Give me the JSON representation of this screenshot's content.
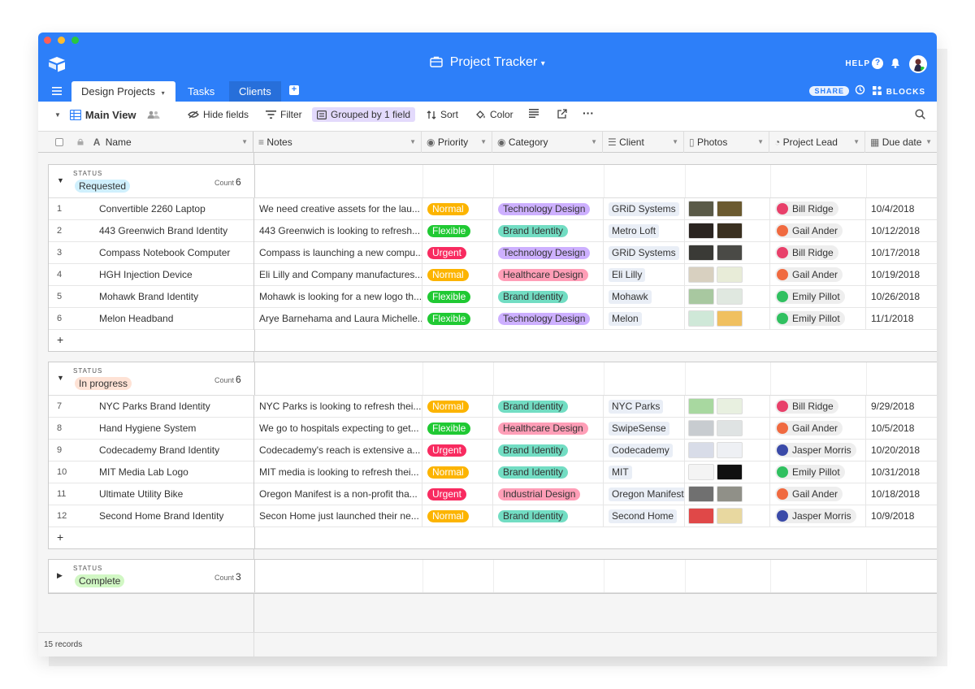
{
  "window": {
    "traffic_colors": [
      "#fe5f57",
      "#febc2e",
      "#28c840"
    ]
  },
  "header": {
    "title": "Project Tracker",
    "title_caret": "▾",
    "help": "HELP",
    "share": "SHARE",
    "blocks": "BLOCKS",
    "icons": [
      "base-logo-icon",
      "briefcase-icon",
      "help-icon",
      "bell-icon",
      "avatar"
    ]
  },
  "tabs": [
    {
      "label": "Design Projects",
      "caret": "▾"
    },
    {
      "label": "Tasks"
    },
    {
      "label": "Clients"
    }
  ],
  "toolbar": {
    "view_name": "Main View",
    "hide_fields": "Hide fields",
    "filter": "Filter",
    "grouped": "Grouped by 1 field",
    "sort": "Sort",
    "color": "Color"
  },
  "columns": [
    "Name",
    "Notes",
    "Priority",
    "Category",
    "Client",
    "Photos",
    "Project Lead",
    "Due date"
  ],
  "priority_colors": {
    "Normal": "#fcb400",
    "Flexible": "#20c933",
    "Urgent": "#f82b60"
  },
  "category_colors": {
    "Technology Design": "#cdb0ff",
    "Brand Identity": "#72ddc3",
    "Healthcare Design": "#ff9eb7",
    "Industrial Design": "#ff9eb7"
  },
  "groups": [
    {
      "status_label": "STATUS",
      "status": "Requested",
      "pill_bg": "#d0f0fd",
      "count_label": "Count",
      "count": "6",
      "expanded": true,
      "rows": [
        {
          "n": "1",
          "name": "Convertible 2260 Laptop",
          "notes": "We need creative assets for the lau...",
          "priority": "Normal",
          "category": "Technology Design",
          "client": "GRiD Systems",
          "lead": "Bill Ridge",
          "due": "10/4/2018",
          "photos": [
            "#5a5a48",
            "#6b5a30"
          ]
        },
        {
          "n": "2",
          "name": "443 Greenwich Brand Identity",
          "notes": "443 Greenwich is looking to refresh...",
          "priority": "Flexible",
          "category": "Brand Identity",
          "client": "Metro Loft",
          "lead": "Gail Ander",
          "due": "10/12/2018",
          "photos": [
            "#2a2420",
            "#3a3020"
          ]
        },
        {
          "n": "3",
          "name": "Compass Notebook Computer",
          "notes": "Compass is launching a new compu...",
          "priority": "Urgent",
          "category": "Technology Design",
          "client": "GRiD Systems",
          "lead": "Bill Ridge",
          "due": "10/17/2018",
          "photos": [
            "#3a3a36",
            "#4a4a46"
          ]
        },
        {
          "n": "4",
          "name": "HGH Injection Device",
          "notes": "Eli Lilly and Company manufactures...",
          "priority": "Normal",
          "category": "Healthcare Design",
          "client": "Eli Lilly",
          "lead": "Gail Ander",
          "due": "10/19/2018",
          "photos": [
            "#d8d0c0",
            "#e8ecd8"
          ]
        },
        {
          "n": "5",
          "name": "Mohawk Brand Identity",
          "notes": "Mohawk is looking for a new logo th...",
          "priority": "Flexible",
          "category": "Brand Identity",
          "client": "Mohawk",
          "lead": "Emily Pillot",
          "due": "10/26/2018",
          "photos": [
            "#a8c8a0",
            "#e0e8e0"
          ]
        },
        {
          "n": "6",
          "name": "Melon Headband",
          "notes": "Arye Barnehama and Laura Michelle...",
          "priority": "Flexible",
          "category": "Technology Design",
          "client": "Melon",
          "lead": "Emily Pillot",
          "due": "11/1/2018",
          "photos": [
            "#cfe8d8",
            "#f0c060"
          ]
        }
      ]
    },
    {
      "status_label": "STATUS",
      "status": "In progress",
      "pill_bg": "#fee2d5",
      "count_label": "Count",
      "count": "6",
      "expanded": true,
      "rows": [
        {
          "n": "7",
          "name": "NYC Parks Brand Identity",
          "notes": "NYC Parks is looking to refresh thei...",
          "priority": "Normal",
          "category": "Brand Identity",
          "client": "NYC Parks",
          "lead": "Bill Ridge",
          "due": "9/29/2018",
          "photos": [
            "#a8d8a0",
            "#e8f0e0"
          ]
        },
        {
          "n": "8",
          "name": "Hand Hygiene System",
          "notes": "We go to hospitals expecting to get...",
          "priority": "Flexible",
          "category": "Healthcare Design",
          "client": "SwipeSense",
          "lead": "Gail Ander",
          "due": "10/5/2018",
          "photos": [
            "#c8ccd0",
            "#dfe3e3"
          ]
        },
        {
          "n": "9",
          "name": "Codecademy Brand Identity",
          "notes": "Codecademy's reach is extensive a...",
          "priority": "Urgent",
          "category": "Brand Identity",
          "client": "Codecademy",
          "lead": "Jasper Morris",
          "due": "10/20/2018",
          "photos": [
            "#d8dce8",
            "#eef0f4"
          ]
        },
        {
          "n": "10",
          "name": "MIT Media Lab Logo",
          "notes": "MIT media is looking to refresh thei...",
          "priority": "Normal",
          "category": "Brand Identity",
          "client": "MIT",
          "lead": "Emily Pillot",
          "due": "10/31/2018",
          "photos": [
            "#f4f4f4",
            "#111111"
          ]
        },
        {
          "n": "11",
          "name": "Ultimate Utility Bike",
          "notes": "Oregon Manifest is a non-profit tha...",
          "priority": "Urgent",
          "category": "Industrial Design",
          "client": "Oregon Manifest",
          "lead": "Gail Ander",
          "due": "10/18/2018",
          "photos": [
            "#707070",
            "#909088"
          ]
        },
        {
          "n": "12",
          "name": "Second Home Brand Identity",
          "notes": "Secon Home just launched their ne...",
          "priority": "Normal",
          "category": "Brand Identity",
          "client": "Second Home",
          "lead": "Jasper Morris",
          "due": "10/9/2018",
          "photos": [
            "#e04848",
            "#e8d8a0"
          ]
        }
      ]
    },
    {
      "status_label": "STATUS",
      "status": "Complete",
      "pill_bg": "#d1f7c4",
      "count_label": "Count",
      "count": "3",
      "expanded": false,
      "rows": []
    }
  ],
  "footer": {
    "records": "15 records"
  }
}
